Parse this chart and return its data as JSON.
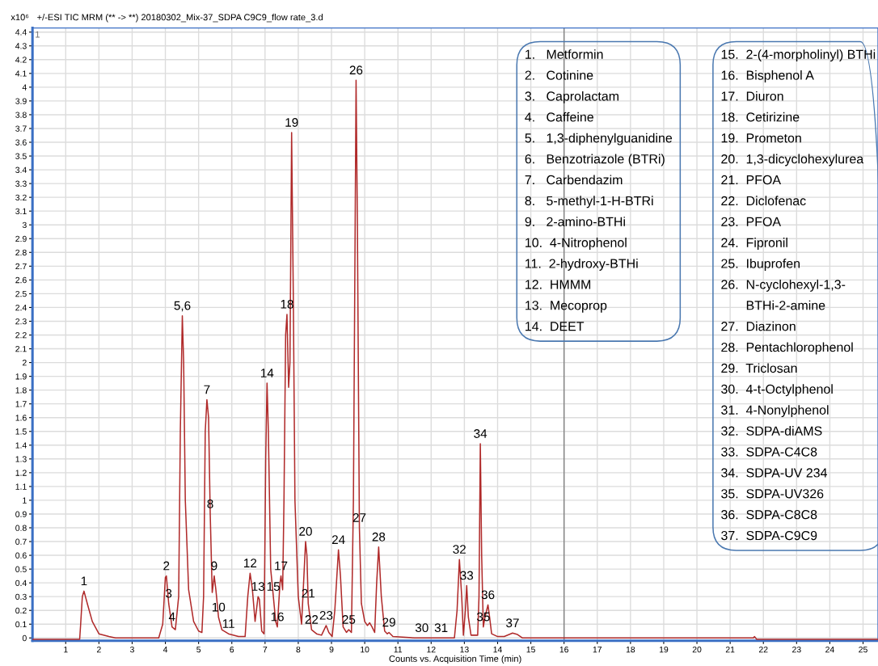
{
  "chart_data": {
    "type": "line",
    "title": "+/-ESI TIC MRM (** -> **) 20180302_Mix-37_SDPA C9C9_flow rate_3.d",
    "xlabel": "Counts vs. Acquisition Time (min)",
    "ylabel": "x10⁶",
    "x": [
      0,
      1.42,
      1.45,
      1.5,
      1.55,
      1.65,
      1.8,
      2.0,
      2.3,
      2.5,
      3.8,
      3.92,
      4.0,
      4.03,
      4.1,
      4.2,
      4.3,
      4.4,
      4.45,
      4.51,
      4.55,
      4.6,
      4.7,
      4.85,
      5.0,
      5.1,
      5.15,
      5.2,
      5.25,
      5.3,
      5.35,
      5.41,
      5.47,
      5.52,
      5.6,
      5.7,
      5.9,
      6.2,
      6.4,
      6.48,
      6.55,
      6.62,
      6.7,
      6.79,
      6.83,
      6.9,
      6.97,
      7.02,
      7.06,
      7.1,
      7.17,
      7.25,
      7.32,
      7.37,
      7.45,
      7.48,
      7.53,
      7.57,
      7.62,
      7.66,
      7.71,
      7.75,
      7.8,
      7.85,
      7.9,
      8.0,
      8.1,
      8.22,
      8.26,
      8.3,
      8.4,
      8.55,
      8.7,
      8.84,
      8.92,
      9.02,
      9.1,
      9.21,
      9.27,
      9.35,
      9.45,
      9.52,
      9.6,
      9.66,
      9.74,
      9.78,
      9.84,
      9.9,
      10.0,
      10.08,
      10.15,
      10.22,
      10.3,
      10.36,
      10.42,
      10.5,
      10.6,
      10.68,
      10.73,
      10.85,
      11.5,
      11.72,
      12.3,
      12.7,
      12.78,
      12.85,
      12.92,
      12.97,
      13.03,
      13.07,
      13.12,
      13.2,
      13.4,
      13.44,
      13.48,
      13.52,
      13.57,
      13.62,
      13.71,
      13.76,
      13.82,
      14.0,
      14.2,
      14.45,
      14.6,
      14.75,
      16,
      21.7,
      21.73,
      21.8,
      25.45
    ],
    "series": [
      {
        "color": "#b02a2a",
        "values": [
          -0.01,
          -0.01,
          0.1,
          0.3,
          0.34,
          0.25,
          0.12,
          0.03,
          0.01,
          0.0,
          0.0,
          0.1,
          0.44,
          0.45,
          0.25,
          0.08,
          0.06,
          0.3,
          1.5,
          2.34,
          2.0,
          1.0,
          0.35,
          0.12,
          0.05,
          0.04,
          0.3,
          1.5,
          1.73,
          1.6,
          0.9,
          0.33,
          0.45,
          0.35,
          0.15,
          0.06,
          0.03,
          0.01,
          0.01,
          0.3,
          0.47,
          0.35,
          0.12,
          0.3,
          0.28,
          0.05,
          0.03,
          1.3,
          1.85,
          1.5,
          0.5,
          0.3,
          0.12,
          0.08,
          0.4,
          0.45,
          0.35,
          1.0,
          2.2,
          2.35,
          1.82,
          2.0,
          3.67,
          2.5,
          1.0,
          0.3,
          0.1,
          0.7,
          0.6,
          0.25,
          0.06,
          0.03,
          0.02,
          0.09,
          0.04,
          0.01,
          0.2,
          0.64,
          0.45,
          0.08,
          0.04,
          0.06,
          0.04,
          1.0,
          4.05,
          3.0,
          0.8,
          0.25,
          0.12,
          0.09,
          0.11,
          0.08,
          0.04,
          0.4,
          0.66,
          0.3,
          0.05,
          0.03,
          0.04,
          0.01,
          0.0,
          0.0,
          0.0,
          0.0,
          0.2,
          0.57,
          0.3,
          0.02,
          0.2,
          0.38,
          0.15,
          0.02,
          0.02,
          0.3,
          1.41,
          0.6,
          0.08,
          0.15,
          0.24,
          0.15,
          0.03,
          0.01,
          0.01,
          0.035,
          0.025,
          0.0,
          0.0,
          0.0,
          0.01,
          -0.01,
          -0.01
        ]
      }
    ],
    "xlim": [
      0,
      25.45
    ],
    "ylim": [
      -0.02,
      4.43
    ],
    "xticks": [
      1,
      2,
      3,
      4,
      5,
      6,
      7,
      8,
      9,
      10,
      11,
      12,
      13,
      14,
      15,
      16,
      17,
      18,
      19,
      20,
      21,
      22,
      23,
      24,
      25
    ],
    "yticks": [
      0,
      0.1,
      0.2,
      0.3,
      0.4,
      0.5,
      0.6,
      0.7,
      0.8,
      0.9,
      1,
      1.1,
      1.2,
      1.3,
      1.4,
      1.5,
      1.6,
      1.7,
      1.8,
      1.9,
      2,
      2.1,
      2.2,
      2.3,
      2.4,
      2.5,
      2.6,
      2.7,
      2.8,
      2.9,
      3,
      3.1,
      3.2,
      3.3,
      3.4,
      3.5,
      3.6,
      3.7,
      3.8,
      3.9,
      4,
      4.1,
      4.2,
      4.3,
      4.4
    ],
    "grid": true,
    "legend": false,
    "marker": "none",
    "line_style": "solid",
    "ref_lines": [
      {
        "axis": "x",
        "value": 16,
        "color": "#808080"
      }
    ],
    "annotations": [
      "1",
      "1.   Metformin\n2.   Cotinine\n3.   Caprolactam\n4.   Caffeine\n5.   1,3-diphenylguanidine\n6.   Benzotriazole (BTRi)\n7.   Carbendazim\n8.   5-methyl-1-H-BTRi\n9.   2-amino-BTHi\n10.  4-Nitrophenol\n11.  2-hydroxy-BTHi\n12.  HMMM\n13.  Mecoprop\n14.  DEET",
      "15.  2-(4-morpholinyl) BTHi\n16.  Bisphenol A\n17.  Diuron\n18.  Cetirizine\n19.  Prometon\n20.  1,3-dicyclohexylurea\n21.  PFOA\n22.  Diclofenac\n23.  PFOA\n24.  Fipronil\n25.  Ibuprofen\n26.  N-cyclohexyl-1,3-\n       BTHi-2-amine\n27.  Diazinon\n28.  Pentachlorophenol\n29.  Triclosan\n30.  4-t-Octylphenol\n31.  4-Nonylphenol\n32.  SDPA-diAMS\n33.  SDPA-C4C8\n34.  SDPA-UV 234\n35.  SDPA-UV326\n36.  SDPA-C8C8\n37.  SDPA-C9C9",
      {
        "text": "1",
        "x": 1.55,
        "y": 0.34
      },
      {
        "text": "2",
        "x": 4.03,
        "y": 0.45
      },
      {
        "text": "3",
        "x": 4.1,
        "y": 0.25
      },
      {
        "text": "4",
        "x": 4.2,
        "y": 0.08
      },
      {
        "text": "5,6",
        "x": 4.51,
        "y": 2.34
      },
      {
        "text": "7",
        "x": 5.25,
        "y": 1.73
      },
      {
        "text": "8",
        "x": 5.35,
        "y": 0.9
      },
      {
        "text": "9",
        "x": 5.47,
        "y": 0.45
      },
      {
        "text": "10",
        "x": 5.6,
        "y": 0.15
      },
      {
        "text": "11",
        "x": 5.9,
        "y": 0.03
      },
      {
        "text": "12",
        "x": 6.55,
        "y": 0.47
      },
      {
        "text": "13",
        "x": 6.79,
        "y": 0.3
      },
      {
        "text": "14",
        "x": 7.06,
        "y": 1.85
      },
      {
        "text": "15",
        "x": 7.25,
        "y": 0.3
      },
      {
        "text": "16",
        "x": 7.37,
        "y": 0.08
      },
      {
        "text": "17",
        "x": 7.48,
        "y": 0.45
      },
      {
        "text": "18",
        "x": 7.66,
        "y": 2.35
      },
      {
        "text": "19",
        "x": 7.8,
        "y": 3.67
      },
      {
        "text": "20",
        "x": 8.22,
        "y": 0.7
      },
      {
        "text": "21",
        "x": 8.3,
        "y": 0.25
      },
      {
        "text": "22",
        "x": 8.4,
        "y": 0.06
      },
      {
        "text": "23",
        "x": 8.84,
        "y": 0.09
      },
      {
        "text": "24",
        "x": 9.21,
        "y": 0.64
      },
      {
        "text": "25",
        "x": 9.52,
        "y": 0.06
      },
      {
        "text": "26",
        "x": 9.74,
        "y": 4.05
      },
      {
        "text": "27",
        "x": 9.84,
        "y": 0.8
      },
      {
        "text": "28",
        "x": 10.42,
        "y": 0.66
      },
      {
        "text": "29",
        "x": 10.73,
        "y": 0.04
      },
      {
        "text": "30",
        "x": 11.72,
        "y": 0.0
      },
      {
        "text": "31",
        "x": 12.3,
        "y": 0.0
      },
      {
        "text": "32",
        "x": 12.85,
        "y": 0.57
      },
      {
        "text": "33",
        "x": 13.07,
        "y": 0.38
      },
      {
        "text": "34",
        "x": 13.48,
        "y": 1.41
      },
      {
        "text": "35",
        "x": 13.57,
        "y": 0.08
      },
      {
        "text": "36",
        "x": 13.71,
        "y": 0.24
      },
      {
        "text": "37",
        "x": 14.45,
        "y": 0.035
      }
    ]
  }
}
